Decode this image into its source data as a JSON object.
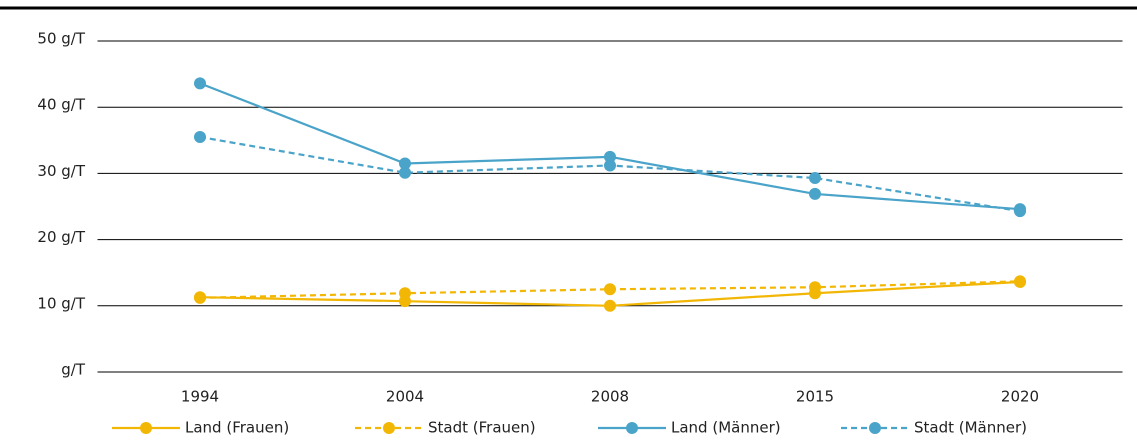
{
  "chart_data": {
    "type": "line",
    "categories": [
      "1994",
      "2004",
      "2008",
      "2015",
      "2020"
    ],
    "series": [
      {
        "name": "Land (Frauen)",
        "color": "#f2b705",
        "line_style": "solid",
        "values": [
          11.3,
          10.7,
          10.0,
          11.9,
          13.6
        ]
      },
      {
        "name": "Stadt (Frauen)",
        "color": "#f2b705",
        "line_style": "dashed",
        "values": [
          11.2,
          11.9,
          12.5,
          12.8,
          13.7
        ]
      },
      {
        "name": "Land (Männer)",
        "color": "#4aa3c9",
        "line_style": "solid",
        "values": [
          43.6,
          31.5,
          32.5,
          26.9,
          24.6
        ]
      },
      {
        "name": "Stadt (Männer)",
        "color": "#4aa3c9",
        "line_style": "dashed",
        "values": [
          35.5,
          30.1,
          31.2,
          29.3,
          24.3
        ]
      }
    ],
    "ylim": [
      0,
      50
    ],
    "yticks": [
      {
        "value": 0,
        "label": "g/T"
      },
      {
        "value": 10,
        "label": "10 g/T"
      },
      {
        "value": 20,
        "label": "20 g/T"
      },
      {
        "value": 30,
        "label": "30 g/T"
      },
      {
        "value": 40,
        "label": "40 g/T"
      },
      {
        "value": 50,
        "label": "50 g/T"
      }
    ],
    "grid": true,
    "legend": "bottom"
  }
}
